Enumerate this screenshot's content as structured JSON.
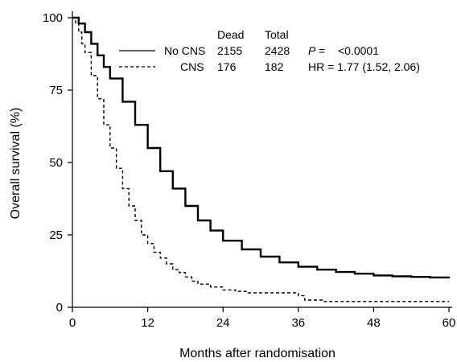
{
  "chart_data": {
    "type": "line",
    "title": "",
    "xlabel": "Months after randomisation",
    "ylabel": "Overall survival (%)",
    "xlim": [
      0,
      60
    ],
    "ylim": [
      0,
      100
    ],
    "xticks": [
      0,
      12,
      24,
      36,
      48,
      60
    ],
    "yticks": [
      0,
      25,
      50,
      75,
      100
    ],
    "grid": false,
    "legend": {
      "position": "top-right",
      "header_dead": "Dead",
      "header_total": "Total",
      "stat_p_label": "P =",
      "stat_p_value": "<0.0001",
      "stat_hr": "HR = 1.77 (1.52, 2.06)"
    },
    "series": [
      {
        "name": "No CNS",
        "line_style": "solid",
        "dead": "2155",
        "total": "2428",
        "x": [
          0,
          1,
          2,
          3,
          4,
          5,
          6,
          8,
          10,
          12,
          14,
          16,
          18,
          20,
          22,
          24,
          27,
          30,
          33,
          36,
          39,
          42,
          45,
          48,
          51,
          54,
          57,
          60
        ],
        "y": [
          100,
          98,
          95,
          91,
          87,
          83,
          79,
          71,
          63,
          55,
          47,
          41,
          35,
          30,
          26.5,
          23,
          20,
          17.5,
          15.5,
          14,
          13,
          12.2,
          11.6,
          11,
          10.7,
          10.5,
          10.3,
          10
        ]
      },
      {
        "name": "CNS",
        "line_style": "dashed",
        "dead": "176",
        "total": "182",
        "x": [
          0,
          0.5,
          1,
          1.5,
          2,
          3,
          4,
          5,
          6,
          7,
          8,
          9,
          10,
          11,
          12,
          13,
          14,
          15,
          16,
          17,
          18,
          19,
          20,
          22,
          24,
          26,
          28,
          30,
          33,
          35,
          36,
          37,
          40,
          45,
          50,
          55,
          60
        ],
        "y": [
          100,
          98,
          95,
          91,
          88,
          80,
          72,
          63,
          55,
          48,
          41,
          35,
          30,
          25,
          22,
          19,
          17,
          15,
          13,
          12,
          10.5,
          9,
          8,
          7,
          6,
          5.5,
          5,
          5,
          5,
          5,
          4,
          2.5,
          2,
          2,
          2,
          2,
          2
        ]
      }
    ]
  }
}
